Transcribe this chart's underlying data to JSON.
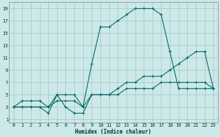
{
  "xlabel": "Humidex (Indice chaleur)",
  "bg_color": "#cce8e8",
  "grid_color": "#99bbbb",
  "line_color": "#006666",
  "xlim_min": -0.5,
  "xlim_max": 23.5,
  "ylim_min": 0.5,
  "ylim_max": 20.0,
  "xticks": [
    0,
    1,
    2,
    3,
    4,
    5,
    6,
    7,
    8,
    9,
    10,
    11,
    12,
    13,
    14,
    15,
    16,
    17,
    18,
    19,
    20,
    21,
    22,
    23
  ],
  "yticks": [
    1,
    3,
    5,
    7,
    9,
    11,
    13,
    15,
    17,
    19
  ],
  "series1_x": [
    0,
    1,
    2,
    3,
    4,
    5,
    6,
    7,
    8,
    9,
    10,
    11,
    12,
    13,
    14,
    15,
    16,
    17,
    18,
    19,
    20,
    21,
    22,
    23
  ],
  "series1_y": [
    3,
    4,
    4,
    4,
    3,
    5,
    5,
    5,
    3,
    10,
    16,
    16,
    17,
    18,
    19,
    19,
    19,
    18,
    12,
    6,
    6,
    6,
    6,
    6
  ],
  "series2_x": [
    0,
    1,
    2,
    3,
    4,
    5,
    6,
    7,
    8,
    9,
    10,
    11,
    12,
    13,
    14,
    15,
    16,
    17,
    18,
    19,
    20,
    21,
    22,
    23
  ],
  "series2_y": [
    3,
    3,
    3,
    3,
    3,
    4,
    4,
    4,
    3,
    5,
    5,
    5,
    5,
    6,
    6,
    6,
    6,
    7,
    7,
    7,
    7,
    7,
    7,
    6
  ],
  "series3_x": [
    0,
    1,
    2,
    3,
    4,
    5,
    6,
    7,
    8,
    9,
    10,
    11,
    12,
    13,
    14,
    15,
    16,
    17,
    18,
    19,
    20,
    21,
    22,
    23
  ],
  "series3_y": [
    3,
    3,
    3,
    3,
    2,
    5,
    3,
    2,
    2,
    5,
    5,
    5,
    6,
    7,
    7,
    8,
    8,
    8,
    9,
    10,
    11,
    12,
    12,
    6
  ],
  "label_fontsize": 5.5,
  "tick_fontsize": 5.0,
  "linewidth": 0.8,
  "markersize": 3.0,
  "markeredgewidth": 0.8
}
